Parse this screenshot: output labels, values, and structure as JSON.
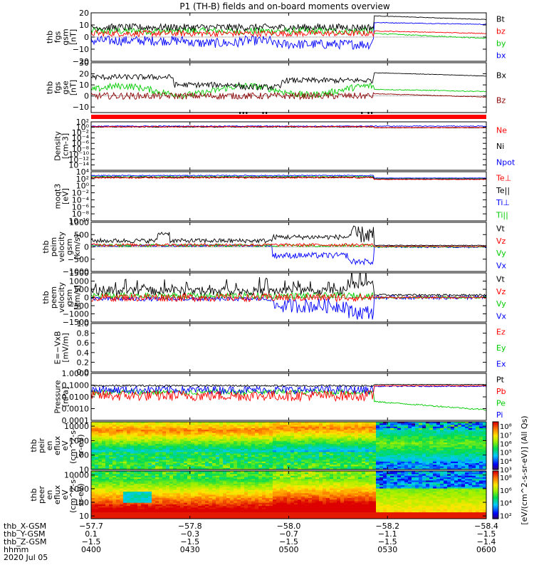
{
  "page": {
    "title": "P1 (TH-B) fields and on-board moments overview",
    "date_line": "2020 Jul 05",
    "spectro_colorbar_label": "[eV/(cm^2-s-sr-eV)] (All Qs)"
  },
  "panels": [
    {
      "key": "fgs_gsm",
      "ylabel": [
        "thb",
        "fgs",
        "gsm",
        "[nT]"
      ],
      "ylim": [
        -20,
        20
      ],
      "log": false,
      "ticks": [
        {
          "v": 20,
          "t": "20"
        },
        {
          "v": 10,
          "t": "10"
        },
        {
          "v": 0,
          "t": "0"
        },
        {
          "v": -10,
          "t": "−10"
        },
        {
          "v": -20,
          "t": "−20"
        }
      ],
      "legend": [
        {
          "t": "Bt",
          "c": "#000000"
        },
        {
          "t": "bz",
          "c": "#ff0000"
        },
        {
          "t": "by",
          "c": "#00cc00"
        },
        {
          "t": "bx",
          "c": "#0000ff"
        }
      ]
    },
    {
      "key": "fgs_gse",
      "ylabel": [
        "thb",
        "fgs",
        "gse",
        "[nT]"
      ],
      "ylim": [
        -15,
        30
      ],
      "log": false,
      "ticks": [
        {
          "v": 30,
          "t": "30"
        },
        {
          "v": 20,
          "t": "20"
        },
        {
          "v": 10,
          "t": "10"
        },
        {
          "v": 0,
          "t": "0"
        },
        {
          "v": -10,
          "t": "−10"
        }
      ],
      "legend": [
        {
          "t": "Bx",
          "c": "#000000"
        },
        {
          "t": "Bz",
          "c": "#8b0000"
        }
      ]
    },
    {
      "key": "density",
      "ylabel": [
        "Density",
        "[cm-3]"
      ],
      "ylim": [
        -16,
        2
      ],
      "log": true,
      "ticks": [
        {
          "v": 2,
          "t": "10²"
        },
        {
          "v": 0,
          "t": "10⁰"
        },
        {
          "v": -2,
          "t": "10⁻²"
        },
        {
          "v": -4,
          "t": "10⁻⁴"
        },
        {
          "v": -6,
          "t": "10⁻⁶"
        },
        {
          "v": -8,
          "t": "10⁻⁸"
        },
        {
          "v": -10,
          "t": "10⁻¹⁰"
        },
        {
          "v": -12,
          "t": "10⁻¹²"
        },
        {
          "v": -14,
          "t": "10⁻¹⁴"
        }
      ],
      "legend": [
        {
          "t": "Ne",
          "c": "#ff0000"
        },
        {
          "t": "Ni",
          "c": "#000000"
        },
        {
          "t": "Npot",
          "c": "#0000ff"
        }
      ]
    },
    {
      "key": "temp",
      "ylabel": [
        "moqt3",
        "[eV]"
      ],
      "ylim": [
        -10,
        4
      ],
      "log": true,
      "ticks": [
        {
          "v": 4,
          "t": "10⁴"
        },
        {
          "v": 2,
          "t": "10²"
        },
        {
          "v": 0,
          "t": "10⁰"
        },
        {
          "v": -2,
          "t": "10⁻²"
        },
        {
          "v": -4,
          "t": "10⁻⁴"
        },
        {
          "v": -6,
          "t": "10⁻⁶"
        },
        {
          "v": -8,
          "t": "10⁻⁸"
        },
        {
          "v": -10,
          "t": "10⁻¹⁰"
        }
      ],
      "legend": [
        {
          "t": "Te⊥",
          "c": "#ff0000"
        },
        {
          "t": "Te||",
          "c": "#000000"
        },
        {
          "t": "Ti⊥",
          "c": "#0000ff"
        },
        {
          "t": "Ti||",
          "c": "#00cc00"
        }
      ]
    },
    {
      "key": "peim_v",
      "ylabel": [
        "thb",
        "peim",
        "velocity",
        "gsm",
        "[km/s]"
      ],
      "ylim": [
        -1000,
        1000
      ],
      "log": false,
      "ticks": [
        {
          "v": 1000,
          "t": "1000"
        },
        {
          "v": 500,
          "t": "500"
        },
        {
          "v": 0,
          "t": "0"
        },
        {
          "v": -500,
          "t": "−500"
        },
        {
          "v": -1000,
          "t": "−1000"
        }
      ],
      "legend": [
        {
          "t": "Vt",
          "c": "#000000"
        },
        {
          "t": "Vz",
          "c": "#ff0000"
        },
        {
          "t": "Vy",
          "c": "#00cc00"
        },
        {
          "t": "Vx",
          "c": "#0000ff"
        }
      ]
    },
    {
      "key": "peem_v",
      "ylabel": [
        "thb",
        "peem",
        "velocity",
        "gsm",
        "[km/s]"
      ],
      "ylim": [
        -1500,
        1500
      ],
      "log": false,
      "ticks": [
        {
          "v": 1500,
          "t": "1500"
        },
        {
          "v": 1000,
          "t": "1000"
        },
        {
          "v": 500,
          "t": "500"
        },
        {
          "v": 0,
          "t": "0"
        },
        {
          "v": -500,
          "t": "−500"
        },
        {
          "v": -1000,
          "t": "−1000"
        },
        {
          "v": -1500,
          "t": "−1500"
        }
      ],
      "legend": [
        {
          "t": "Vt",
          "c": "#000000"
        },
        {
          "t": "Vz",
          "c": "#ff0000"
        },
        {
          "t": "Vy",
          "c": "#00cc00"
        },
        {
          "t": "Vx",
          "c": "#0000ff"
        }
      ]
    },
    {
      "key": "efield",
      "ylabel": [
        "E=−VxB",
        "[mV/m]"
      ],
      "ylim": [
        0,
        1
      ],
      "log": false,
      "ticks": [
        {
          "v": 1.0,
          "t": "1.0"
        },
        {
          "v": 0.8,
          "t": "0.8"
        },
        {
          "v": 0.6,
          "t": "0.6"
        },
        {
          "v": 0.4,
          "t": "0.4"
        },
        {
          "v": 0.2,
          "t": "0.2"
        },
        {
          "v": 0.0,
          "t": "0.0"
        }
      ],
      "legend": [
        {
          "t": "Ez",
          "c": "#ff0000"
        },
        {
          "t": "Ey",
          "c": "#00cc00"
        },
        {
          "t": "Ex",
          "c": "#0000ff"
        }
      ]
    },
    {
      "key": "pressure",
      "ylabel": [
        "Pressure",
        "[nPa]"
      ],
      "ylim": [
        -4,
        0
      ],
      "log": true,
      "ticks": [
        {
          "v": 0,
          "t": "1.0000"
        },
        {
          "v": -1,
          "t": "0.1000"
        },
        {
          "v": -2,
          "t": "0.0100"
        },
        {
          "v": -3,
          "t": "0.0010"
        },
        {
          "v": -4,
          "t": "0.0001"
        }
      ],
      "legend": [
        {
          "t": "Pt",
          "c": "#000000"
        },
        {
          "t": "Pb",
          "c": "#ff0000"
        },
        {
          "t": "Pe",
          "c": "#00cc00"
        },
        {
          "t": "Pi",
          "c": "#0000ff"
        }
      ]
    },
    {
      "key": "peir_en",
      "ylabel": [
        "thb",
        "peir",
        "en",
        "eflux",
        "eV",
        "(cm^2-s-",
        "sr-eV)"
      ],
      "ylim": [
        1,
        4.3
      ],
      "log": true,
      "ticks": [
        {
          "v": 4,
          "t": "10000"
        },
        {
          "v": 3,
          "t": "1000"
        },
        {
          "v": 2,
          "t": "100"
        },
        {
          "v": 1,
          "t": "10"
        }
      ],
      "legend": []
    },
    {
      "key": "peer_en",
      "ylabel": [
        "thb",
        "peer",
        "en",
        "eflux",
        "eV",
        "(cm^2-s-",
        "sr-eV)"
      ],
      "ylim": [
        0.8,
        4.3
      ],
      "log": true,
      "ticks": [
        {
          "v": 4,
          "t": "10000"
        },
        {
          "v": 3,
          "t": "1000"
        },
        {
          "v": 2,
          "t": "100"
        },
        {
          "v": 1,
          "t": "10"
        }
      ],
      "legend": []
    }
  ],
  "colorbars": [
    {
      "ticks": [
        {
          "v": 8,
          "t": "10⁸"
        },
        {
          "v": 7,
          "t": "10⁷"
        },
        {
          "v": 6,
          "t": "10⁶"
        },
        {
          "v": 5,
          "t": "10⁵"
        },
        {
          "v": 4,
          "t": "10⁴"
        },
        {
          "v": 3,
          "t": "10³"
        }
      ],
      "range": [
        3,
        8.5
      ]
    },
    {
      "ticks": [
        {
          "v": 8,
          "t": "10⁸"
        },
        {
          "v": 6,
          "t": "10⁶"
        },
        {
          "v": 4,
          "t": "10⁴"
        },
        {
          "v": 2,
          "t": "10²"
        }
      ],
      "range": [
        1.5,
        9
      ]
    }
  ],
  "chart_data": {
    "type": "line",
    "title": "P1 (TH-B) fields and on-board moments overview",
    "x_axis": {
      "rows": [
        {
          "label": "thb_X-GSM",
          "values": [
            "−57.7",
            "−57.8",
            "−58.0",
            "−58.2",
            "−58.4"
          ]
        },
        {
          "label": "thb_Y-GSM",
          "values": [
            "0.1",
            "−0.3",
            "−0.7",
            "−1.1",
            "−1.5"
          ]
        },
        {
          "label": "thb_Z-GSM",
          "values": [
            "−1.5",
            "−1.5",
            "−1.5",
            "−1.5",
            "−1.4"
          ]
        },
        {
          "label": "hhmm",
          "values": [
            "0400",
            "0430",
            "0500",
            "0530",
            "0600"
          ]
        }
      ],
      "time_range_min": [
        0,
        120
      ]
    },
    "series_summary": [
      {
        "panel": "fgs_gsm",
        "name": "Bt",
        "before_0526": "≈8 nT fluctuating",
        "after_0526": "≈17 nT decreasing to ≈14"
      },
      {
        "panel": "fgs_gsm",
        "name": "bz",
        "before_0526": "≈3 nT",
        "after_0526": "≈5 nT decreasing to ≈3"
      },
      {
        "panel": "fgs_gsm",
        "name": "by",
        "before_0526": "≈5 nT",
        "after_0526": "≈3 nT decreasing to ≈−1"
      },
      {
        "panel": "fgs_gsm",
        "name": "bx",
        "before_0526": "−10 to 0 nT",
        "after_0526": "≈12 nT decreasing to ≈11"
      },
      {
        "panel": "fgs_gse",
        "name": "Bx",
        "before_0526": "≈8 to 18 nT",
        "after_0526": "≈21 decreasing to ≈18 nT"
      },
      {
        "panel": "density",
        "name": "Ne",
        "level": "≈1 cm-3"
      },
      {
        "panel": "temp",
        "name": "Te⊥",
        "level": "≈100 to 1000 eV"
      },
      {
        "panel": "peim_v",
        "name": "Vt",
        "before_0526": "≈200 to 500 km/s",
        "peak": "≈900 km/s near 0520"
      },
      {
        "panel": "peim_v",
        "name": "Vx",
        "min": "≈−700 km/s near 0520"
      },
      {
        "panel": "peem_v",
        "name": "Vt",
        "spikes": "up to ≈1500 km/s"
      },
      {
        "panel": "pressure",
        "name": "Pt",
        "level": "≈0.1 nPa"
      },
      {
        "panel": "pressure",
        "name": "Pe",
        "after_0526": "≈0.003 decreasing to ≈0.0007 nPa"
      }
    ]
  }
}
